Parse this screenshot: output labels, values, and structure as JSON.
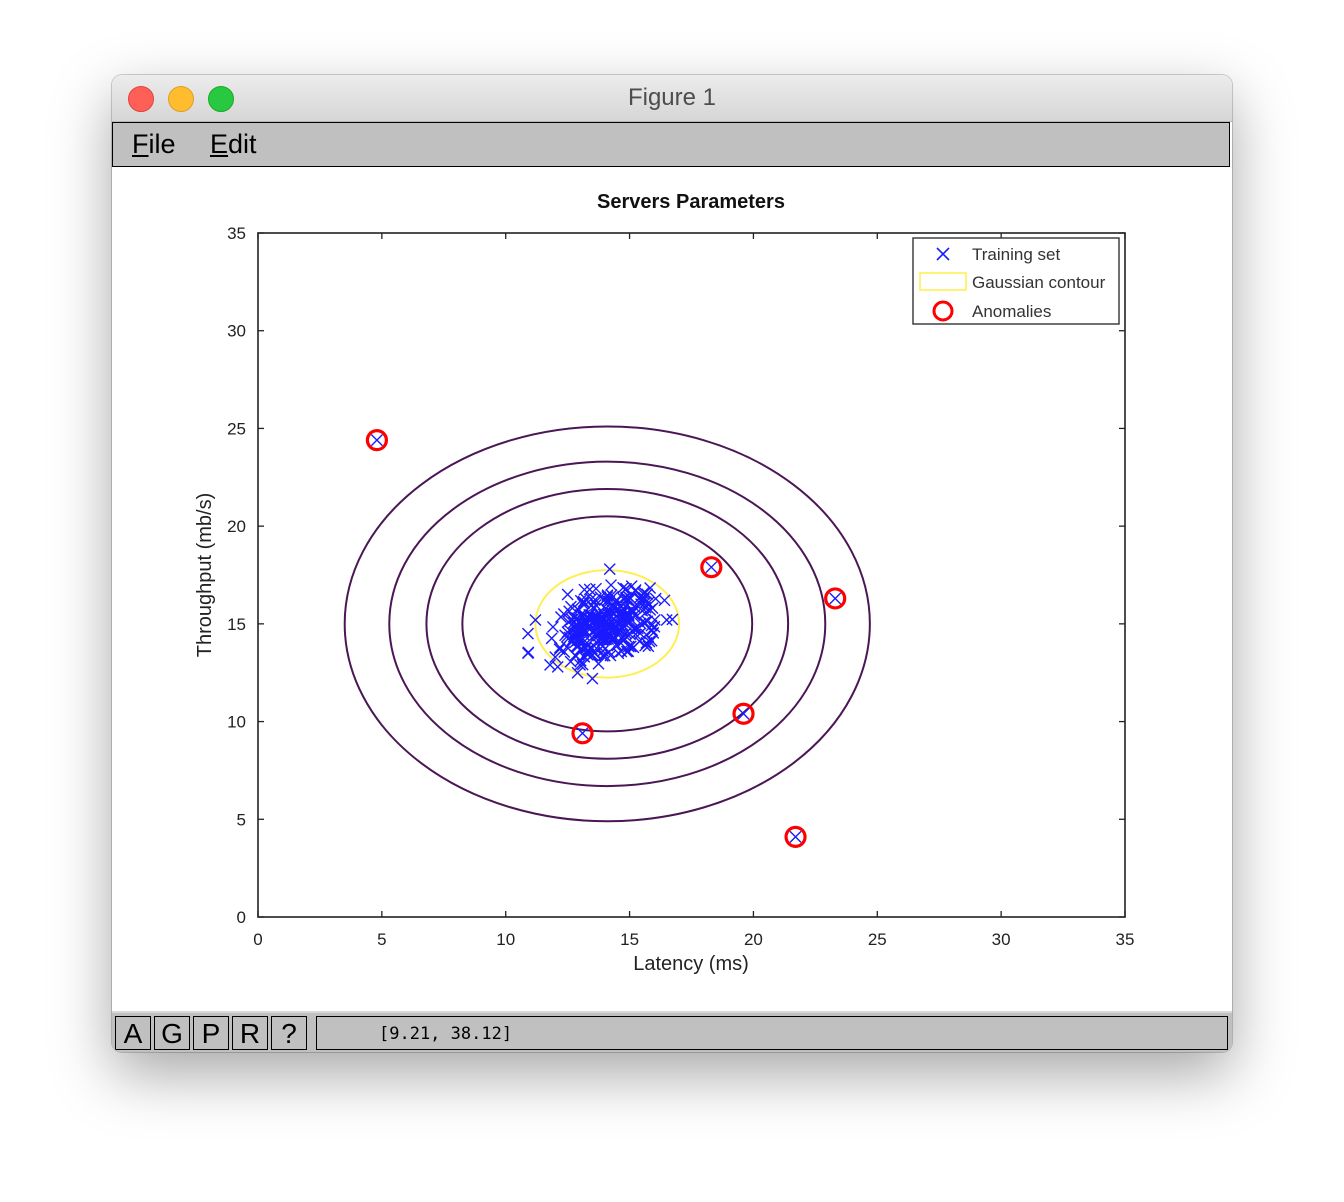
{
  "window": {
    "title": "Figure 1",
    "menu": [
      {
        "label_first": "F",
        "label_rest": "ile"
      },
      {
        "label_first": "E",
        "label_rest": "dit"
      }
    ]
  },
  "toolbar": {
    "buttons": [
      "A",
      "G",
      "P",
      "R",
      "?"
    ],
    "coordinates": "[9.21, 38.12]"
  },
  "chart_data": {
    "type": "scatter",
    "title": "Servers Parameters",
    "xlabel": "Latency (ms)",
    "ylabel": "Throughput (mb/s)",
    "xlim": [
      0,
      35
    ],
    "ylim": [
      0,
      35
    ],
    "xticks": [
      0,
      5,
      10,
      15,
      20,
      25,
      30,
      35
    ],
    "yticks": [
      0,
      5,
      10,
      15,
      20,
      25,
      30,
      35
    ],
    "grid": false,
    "legend_position": "top-right",
    "legend": [
      "Training set",
      "Gaussian contour",
      "Anomalies"
    ],
    "colors": {
      "training": "#1a1aff",
      "gaussian": "#ffee55",
      "contour": "#4b1655",
      "anomaly": "#ff0000"
    },
    "gaussian_center": [
      14.1,
      15.0
    ],
    "gaussian_contour": {
      "rx": 2.9,
      "ry": 2.75
    },
    "contours": [
      {
        "rx": 5.85,
        "ry": 5.5
      },
      {
        "rx": 7.3,
        "ry": 6.9
      },
      {
        "rx": 8.8,
        "ry": 8.3
      },
      {
        "rx": 10.6,
        "ry": 10.1
      }
    ],
    "training_cluster": {
      "center": [
        14.1,
        15.0
      ],
      "spread": [
        1.1,
        1.0
      ],
      "count": 300
    },
    "training_points": [
      [
        10.9,
        14.5
      ],
      [
        10.9,
        13.5
      ],
      [
        11.2,
        15.2
      ],
      [
        12.0,
        13.3
      ],
      [
        12.1,
        12.8
      ],
      [
        12.9,
        12.5
      ],
      [
        13.0,
        12.9
      ],
      [
        13.5,
        12.2
      ],
      [
        14.2,
        17.8
      ],
      [
        16.5,
        15.2
      ],
      [
        15.8,
        14.1
      ],
      [
        12.5,
        16.5
      ],
      [
        4.8,
        24.4
      ],
      [
        13.1,
        9.4
      ],
      [
        18.3,
        17.9
      ],
      [
        23.3,
        16.3
      ],
      [
        19.6,
        10.4
      ],
      [
        21.7,
        4.1
      ]
    ],
    "anomalies": [
      [
        4.8,
        24.4
      ],
      [
        13.1,
        9.4
      ],
      [
        18.3,
        17.9
      ],
      [
        23.3,
        16.3
      ],
      [
        19.6,
        10.4
      ],
      [
        21.7,
        4.1
      ]
    ]
  }
}
